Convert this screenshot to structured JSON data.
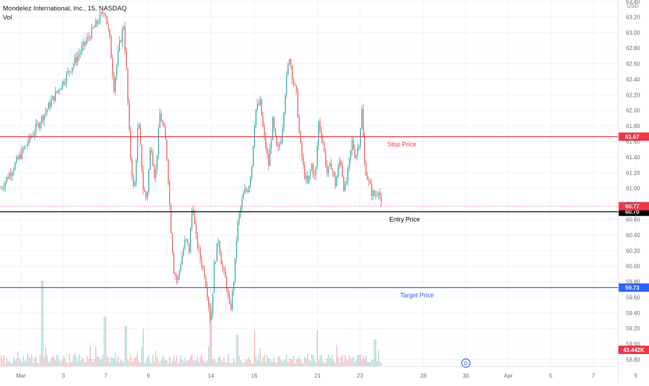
{
  "legend": {
    "title": "Mondelez International, Inc., 15, NASDAQ",
    "volume_label": "Vol"
  },
  "currency": "USD",
  "colors": {
    "up": "#26a69a",
    "down": "#ef5350",
    "stop": "#f23645",
    "entry": "#000000",
    "target": "#2962ff",
    "current": "#f23645",
    "volume_badge": "#f23645"
  },
  "chart_data": {
    "type": "candlestick",
    "y_axis": {
      "range": [
        58.7,
        63.75
      ],
      "ticks": [
        "58.80",
        "59.00",
        "59.20",
        "59.40",
        "59.60",
        "59.80",
        "60.00",
        "60.20",
        "60.40",
        "60.60",
        "60.80",
        "61.00",
        "61.20",
        "61.40",
        "61.60",
        "61.80",
        "62.00",
        "62.20",
        "62.40",
        "62.60",
        "62.80",
        "63.00",
        "63.20",
        "63.40"
      ]
    },
    "x_axis": {
      "ticks": [
        "Mar",
        "3",
        "7",
        "9",
        "14",
        "16",
        "21",
        "23",
        "28",
        "30",
        "Apr",
        "5",
        "7",
        "9"
      ]
    },
    "levels": [
      {
        "name": "Stop Price",
        "value": 61.67,
        "badge": "61.67"
      },
      {
        "name": "Entry Price",
        "value": 60.7,
        "badge": "60.70"
      },
      {
        "name": "Target Price",
        "value": 59.73,
        "badge": "59.73"
      }
    ],
    "current_price": {
      "value": 60.77,
      "badge": "60.77"
    },
    "volume_last": "43.442K",
    "dividend_marker": "D",
    "price_path": [
      {
        "x": 1,
        "y": 61.0
      },
      {
        "x": 150,
        "y": 63.3
      },
      {
        "x": 157,
        "y": 62.9
      },
      {
        "x": 163,
        "y": 62.3
      },
      {
        "x": 170,
        "y": 62.8
      },
      {
        "x": 177,
        "y": 63.1
      },
      {
        "x": 181,
        "y": 62.5
      },
      {
        "x": 186,
        "y": 61.5
      },
      {
        "x": 192,
        "y": 60.9
      },
      {
        "x": 198,
        "y": 61.9
      },
      {
        "x": 205,
        "y": 61.0
      },
      {
        "x": 210,
        "y": 60.85
      },
      {
        "x": 216,
        "y": 61.6
      },
      {
        "x": 222,
        "y": 61.1
      },
      {
        "x": 229,
        "y": 61.95
      },
      {
        "x": 236,
        "y": 61.7
      },
      {
        "x": 240,
        "y": 61.3
      },
      {
        "x": 244,
        "y": 60.6
      },
      {
        "x": 249,
        "y": 59.95
      },
      {
        "x": 254,
        "y": 59.8
      },
      {
        "x": 260,
        "y": 60.1
      },
      {
        "x": 266,
        "y": 60.35
      },
      {
        "x": 271,
        "y": 60.2
      },
      {
        "x": 276,
        "y": 60.85
      },
      {
        "x": 280,
        "y": 60.4
      },
      {
        "x": 287,
        "y": 60.1
      },
      {
        "x": 293,
        "y": 59.9
      },
      {
        "x": 298,
        "y": 59.6
      },
      {
        "x": 302,
        "y": 59.25
      },
      {
        "x": 307,
        "y": 60.0
      },
      {
        "x": 313,
        "y": 60.35
      },
      {
        "x": 318,
        "y": 60.0
      },
      {
        "x": 324,
        "y": 59.8
      },
      {
        "x": 330,
        "y": 59.4
      },
      {
        "x": 336,
        "y": 59.9
      },
      {
        "x": 340,
        "y": 60.5
      },
      {
        "x": 345,
        "y": 60.75
      },
      {
        "x": 350,
        "y": 60.95
      },
      {
        "x": 356,
        "y": 61.0
      },
      {
        "x": 361,
        "y": 61.3
      },
      {
        "x": 366,
        "y": 62.0
      },
      {
        "x": 373,
        "y": 62.1
      },
      {
        "x": 378,
        "y": 61.7
      },
      {
        "x": 385,
        "y": 61.3
      },
      {
        "x": 391,
        "y": 61.85
      },
      {
        "x": 398,
        "y": 61.45
      },
      {
        "x": 404,
        "y": 61.7
      },
      {
        "x": 410,
        "y": 62.35
      },
      {
        "x": 415,
        "y": 62.7
      },
      {
        "x": 420,
        "y": 62.4
      },
      {
        "x": 425,
        "y": 62.2
      },
      {
        "x": 430,
        "y": 61.6
      },
      {
        "x": 436,
        "y": 61.2
      },
      {
        "x": 441,
        "y": 61.05
      },
      {
        "x": 447,
        "y": 61.3
      },
      {
        "x": 452,
        "y": 61.1
      },
      {
        "x": 457,
        "y": 61.85
      },
      {
        "x": 463,
        "y": 61.6
      },
      {
        "x": 469,
        "y": 61.2
      },
      {
        "x": 475,
        "y": 61.3
      },
      {
        "x": 481,
        "y": 61.05
      },
      {
        "x": 488,
        "y": 61.4
      },
      {
        "x": 494,
        "y": 60.95
      },
      {
        "x": 499,
        "y": 61.2
      },
      {
        "x": 505,
        "y": 61.6
      },
      {
        "x": 510,
        "y": 61.4
      },
      {
        "x": 515,
        "y": 61.6
      },
      {
        "x": 519,
        "y": 62.0
      },
      {
        "x": 523,
        "y": 61.3
      },
      {
        "x": 528,
        "y": 61.1
      },
      {
        "x": 533,
        "y": 60.95
      },
      {
        "x": 538,
        "y": 60.9
      },
      {
        "x": 543,
        "y": 61.0
      },
      {
        "x": 547,
        "y": 60.77
      }
    ],
    "volume_relative": [
      {
        "x": 60,
        "v": 0.95
      },
      {
        "x": 150,
        "v": 0.55
      },
      {
        "x": 180,
        "v": 0.45
      },
      {
        "x": 205,
        "v": 0.42
      },
      {
        "x": 302,
        "v": 0.7
      },
      {
        "x": 340,
        "v": 0.35
      },
      {
        "x": 365,
        "v": 0.4
      },
      {
        "x": 455,
        "v": 0.4
      },
      {
        "x": 538,
        "v": 0.3
      }
    ]
  }
}
